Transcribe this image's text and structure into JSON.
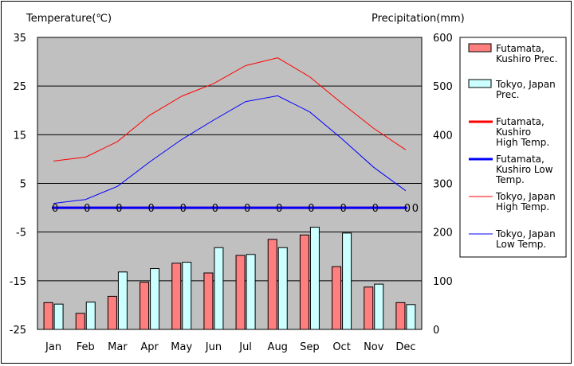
{
  "chart_data": {
    "type": "bar+line",
    "left_axis_title": "Temperature(℃)",
    "right_axis_title": "Precipitation(mm)",
    "categories": [
      "Jan",
      "Feb",
      "Mar",
      "Apr",
      "May",
      "Jun",
      "Jul",
      "Aug",
      "Sep",
      "Oct",
      "Nov",
      "Dec"
    ],
    "left_ylim": [
      -25,
      35
    ],
    "left_ticks": [
      35,
      25,
      15,
      5,
      -5,
      -15,
      -25
    ],
    "right_ylim": [
      0,
      600
    ],
    "right_ticks": [
      600,
      500,
      400,
      300,
      200,
      100,
      0
    ],
    "grid": true,
    "legend_position": "right",
    "bar_series": [
      {
        "name": "Futamata, Kushiro Prec.",
        "legend_lines": [
          "Futamata,",
          "Kushiro Prec."
        ],
        "color": "#ff7f7f",
        "values": [
          55,
          33,
          68,
          97,
          136,
          116,
          152,
          185,
          194,
          129,
          87,
          55
        ]
      },
      {
        "name": "Tokyo, Japan Prec.",
        "legend_lines": [
          "Tokyo, Japan",
          "Prec."
        ],
        "color": "#ccffff",
        "values": [
          52,
          56,
          118,
          125,
          138,
          168,
          154,
          168,
          210,
          198,
          93,
          51
        ]
      }
    ],
    "line_series": [
      {
        "name": "Futamata, Kushiro High Temp.",
        "legend_lines": [
          "Futamata,",
          "Kushiro",
          "High Temp."
        ],
        "color": "#ff0000",
        "width": 3,
        "values": [
          0,
          0,
          0,
          0,
          0,
          0,
          0,
          0,
          0,
          0,
          0,
          0
        ],
        "point_labels": [
          "0",
          "0",
          "0",
          "0",
          "0",
          "0",
          "0",
          "0",
          "0",
          "0",
          "0",
          "0"
        ]
      },
      {
        "name": "Futamata, Kushiro Low Temp.",
        "legend_lines": [
          "Futamata,",
          "Kushiro Low",
          "Temp."
        ],
        "color": "#0000ff",
        "width": 3,
        "values": [
          0,
          0,
          0,
          0,
          0,
          0,
          0,
          0,
          0,
          0,
          0,
          0
        ],
        "point_labels": [
          "0",
          "0",
          "0",
          "0",
          "0",
          "0",
          "0",
          "0",
          "0",
          "0",
          "0",
          "0"
        ]
      },
      {
        "name": "Tokyo, Japan High Temp.",
        "legend_lines": [
          "Tokyo, Japan",
          "High Temp."
        ],
        "color": "#ff0000",
        "width": 1,
        "values": [
          9.6,
          10.4,
          13.6,
          19.0,
          22.9,
          25.5,
          29.2,
          30.8,
          26.9,
          21.5,
          16.3,
          11.9
        ]
      },
      {
        "name": "Tokyo, Japan Low Temp.",
        "legend_lines": [
          "Tokyo, Japan",
          "Low Temp."
        ],
        "color": "#0000ff",
        "width": 1,
        "values": [
          0.9,
          1.7,
          4.4,
          9.4,
          14.0,
          18.0,
          21.8,
          23.0,
          19.7,
          14.2,
          8.3,
          3.5
        ]
      }
    ],
    "extra_label": "0"
  }
}
